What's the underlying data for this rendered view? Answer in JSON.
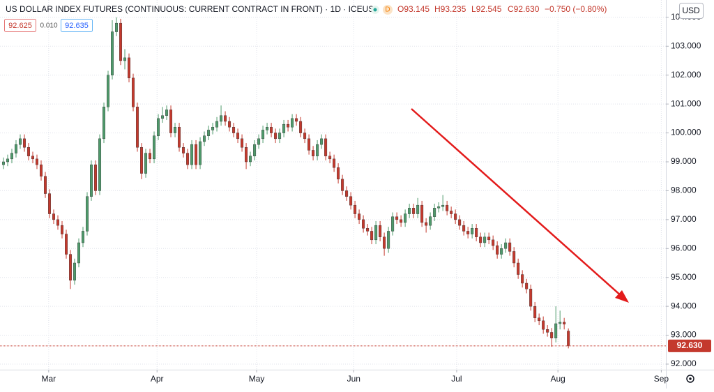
{
  "chart_data": {
    "type": "candlestick",
    "title": "US DOLLAR INDEX FUTURES (CONTINUOUS: CURRENT CONTRACT IN FRONT) · 1D · ICEUS",
    "interval_badge": "D",
    "ohlc_header": {
      "open": "O93.145",
      "high": "H93.235",
      "low": "L92.545",
      "close": "C92.630",
      "change": "−0.750 (−0.80%)"
    },
    "bid": "92.625",
    "spread": "0.010",
    "ask": "92.635",
    "currency": "USD",
    "last_price": 92.63,
    "last_price_label": "92.630",
    "up_color": "#4e9a6b",
    "down_color": "#c4392d",
    "grid": true,
    "xlim": [
      -0.83,
      158.3
    ],
    "xticks": [
      {
        "value": 10.8,
        "label": "Mar"
      },
      {
        "value": 36.7,
        "label": "Apr"
      },
      {
        "value": 60.5,
        "label": "May"
      },
      {
        "value": 83.7,
        "label": "Jun"
      },
      {
        "value": 108.3,
        "label": "Jul"
      },
      {
        "value": 132.5,
        "label": "Aug"
      },
      {
        "value": 157.2,
        "label": "Sep"
      }
    ],
    "ylim": [
      91.807,
      104.6
    ],
    "yticks": [
      {
        "value": 92,
        "label": "92.000"
      },
      {
        "value": 93,
        "label": "93.000"
      },
      {
        "value": 94,
        "label": "94.000"
      },
      {
        "value": 95,
        "label": "95.000"
      },
      {
        "value": 96,
        "label": "96.000"
      },
      {
        "value": 97,
        "label": "97.000"
      },
      {
        "value": 98,
        "label": "98.000"
      },
      {
        "value": 99,
        "label": "99.000"
      },
      {
        "value": 100,
        "label": "100.000"
      },
      {
        "value": 101,
        "label": "101.000"
      },
      {
        "value": 102,
        "label": "102.000"
      },
      {
        "value": 103,
        "label": "103.000"
      },
      {
        "value": 104,
        "label": "104.000"
      }
    ],
    "ohlc": [
      [
        98.9,
        99.15,
        98.75,
        99.0
      ],
      [
        99.0,
        99.25,
        98.85,
        99.1
      ],
      [
        99.1,
        99.45,
        98.95,
        99.3
      ],
      [
        99.3,
        99.75,
        99.15,
        99.6
      ],
      [
        99.6,
        99.95,
        99.45,
        99.8
      ],
      [
        99.8,
        99.95,
        99.35,
        99.5
      ],
      [
        99.5,
        99.65,
        99.05,
        99.2
      ],
      [
        99.2,
        99.35,
        98.95,
        99.1
      ],
      [
        99.1,
        99.25,
        98.75,
        98.9
      ],
      [
        98.9,
        99.05,
        98.35,
        98.5
      ],
      [
        98.5,
        98.65,
        97.75,
        97.9
      ],
      [
        97.9,
        98.05,
        97.05,
        97.2
      ],
      [
        97.2,
        97.35,
        96.85,
        97.0
      ],
      [
        97.0,
        97.15,
        96.65,
        96.8
      ],
      [
        96.8,
        96.95,
        96.35,
        96.5
      ],
      [
        96.5,
        96.65,
        95.65,
        95.8
      ],
      [
        95.8,
        95.95,
        94.6,
        94.9
      ],
      [
        94.9,
        95.65,
        94.75,
        95.5
      ],
      [
        95.5,
        96.35,
        95.35,
        96.2
      ],
      [
        96.2,
        96.75,
        96.05,
        96.6
      ],
      [
        96.6,
        97.95,
        96.45,
        97.8
      ],
      [
        97.8,
        99.05,
        97.65,
        98.9
      ],
      [
        98.9,
        99.05,
        97.85,
        98.0
      ],
      [
        98.0,
        99.95,
        97.85,
        99.8
      ],
      [
        99.8,
        101.05,
        99.65,
        100.9
      ],
      [
        100.9,
        102.15,
        100.75,
        102.0
      ],
      [
        102.0,
        103.9,
        101.85,
        103.5
      ],
      [
        103.5,
        104.0,
        103.35,
        103.8
      ],
      [
        103.8,
        103.95,
        102.35,
        102.5
      ],
      [
        102.5,
        102.9,
        102.2,
        102.6
      ],
      [
        102.6,
        102.75,
        101.75,
        101.9
      ],
      [
        101.9,
        102.05,
        100.75,
        100.9
      ],
      [
        100.9,
        101.05,
        99.35,
        99.5
      ],
      [
        99.5,
        99.65,
        98.4,
        98.6
      ],
      [
        98.6,
        99.45,
        98.45,
        99.3
      ],
      [
        99.3,
        99.45,
        98.95,
        99.1
      ],
      [
        99.1,
        100.05,
        98.95,
        99.9
      ],
      [
        99.9,
        100.65,
        99.75,
        100.5
      ],
      [
        100.5,
        100.9,
        100.35,
        100.6
      ],
      [
        100.6,
        100.95,
        100.45,
        100.8
      ],
      [
        100.8,
        100.95,
        99.85,
        100.0
      ],
      [
        100.0,
        100.35,
        99.85,
        100.2
      ],
      [
        100.2,
        100.35,
        99.35,
        99.5
      ],
      [
        99.5,
        99.65,
        99.15,
        99.3
      ],
      [
        99.3,
        99.45,
        98.75,
        98.9
      ],
      [
        98.9,
        99.75,
        98.75,
        99.6
      ],
      [
        99.6,
        99.75,
        98.75,
        98.9
      ],
      [
        98.9,
        99.85,
        98.75,
        99.7
      ],
      [
        99.7,
        100.05,
        99.55,
        99.9
      ],
      [
        99.9,
        100.25,
        99.75,
        100.1
      ],
      [
        100.1,
        100.35,
        99.95,
        100.2
      ],
      [
        100.2,
        100.55,
        100.05,
        100.4
      ],
      [
        100.4,
        100.95,
        100.25,
        100.6
      ],
      [
        100.6,
        100.75,
        100.25,
        100.4
      ],
      [
        100.4,
        100.55,
        100.05,
        100.2
      ],
      [
        100.2,
        100.35,
        99.85,
        100.0
      ],
      [
        100.0,
        100.15,
        99.65,
        99.8
      ],
      [
        99.8,
        99.95,
        99.35,
        99.5
      ],
      [
        99.5,
        99.65,
        98.75,
        99.0
      ],
      [
        99.0,
        99.35,
        98.85,
        99.2
      ],
      [
        99.2,
        99.75,
        99.05,
        99.6
      ],
      [
        99.6,
        99.95,
        99.45,
        99.8
      ],
      [
        99.8,
        100.25,
        99.65,
        100.1
      ],
      [
        100.1,
        100.35,
        99.95,
        100.2
      ],
      [
        100.2,
        100.35,
        99.85,
        100.0
      ],
      [
        100.0,
        100.15,
        99.65,
        99.8
      ],
      [
        99.8,
        100.15,
        99.65,
        100.0
      ],
      [
        100.0,
        100.45,
        99.85,
        100.3
      ],
      [
        100.3,
        100.45,
        100.05,
        100.2
      ],
      [
        100.2,
        100.65,
        100.05,
        100.5
      ],
      [
        100.5,
        100.65,
        100.25,
        100.4
      ],
      [
        100.4,
        100.55,
        99.85,
        100.0
      ],
      [
        100.0,
        100.15,
        99.65,
        99.8
      ],
      [
        99.8,
        99.95,
        99.25,
        99.4
      ],
      [
        99.4,
        99.55,
        99.05,
        99.2
      ],
      [
        99.2,
        99.75,
        99.05,
        99.6
      ],
      [
        99.6,
        99.95,
        99.45,
        99.8
      ],
      [
        99.8,
        99.95,
        99.05,
        99.2
      ],
      [
        99.2,
        99.35,
        98.95,
        99.1
      ],
      [
        99.1,
        99.25,
        98.65,
        98.8
      ],
      [
        98.8,
        98.95,
        98.25,
        98.4
      ],
      [
        98.4,
        98.55,
        97.85,
        98.0
      ],
      [
        98.0,
        98.15,
        97.65,
        97.8
      ],
      [
        97.8,
        97.95,
        97.35,
        97.5
      ],
      [
        97.5,
        97.65,
        97.05,
        97.2
      ],
      [
        97.2,
        97.35,
        96.85,
        97.0
      ],
      [
        97.0,
        97.15,
        96.55,
        96.7
      ],
      [
        96.7,
        96.85,
        96.45,
        96.6
      ],
      [
        96.6,
        96.75,
        96.15,
        96.3
      ],
      [
        96.3,
        96.95,
        96.15,
        96.8
      ],
      [
        96.8,
        96.95,
        96.25,
        96.4
      ],
      [
        96.4,
        96.55,
        95.75,
        96.0
      ],
      [
        96.0,
        96.75,
        95.85,
        96.6
      ],
      [
        96.6,
        97.25,
        96.45,
        97.1
      ],
      [
        97.1,
        97.25,
        96.85,
        97.0
      ],
      [
        97.0,
        97.15,
        96.75,
        96.9
      ],
      [
        96.9,
        97.35,
        96.75,
        97.2
      ],
      [
        97.2,
        97.55,
        97.05,
        97.4
      ],
      [
        97.4,
        97.55,
        97.05,
        97.2
      ],
      [
        97.2,
        97.75,
        97.05,
        97.5
      ],
      [
        97.5,
        97.65,
        96.75,
        96.9
      ],
      [
        96.9,
        97.05,
        96.55,
        96.8
      ],
      [
        96.8,
        97.25,
        96.65,
        97.1
      ],
      [
        97.1,
        97.55,
        96.95,
        97.4
      ],
      [
        97.4,
        97.6,
        97.25,
        97.45
      ],
      [
        97.45,
        97.85,
        97.3,
        97.5
      ],
      [
        97.5,
        97.65,
        97.15,
        97.3
      ],
      [
        97.3,
        97.45,
        97.05,
        97.2
      ],
      [
        97.2,
        97.35,
        96.85,
        97.0
      ],
      [
        97.0,
        97.15,
        96.65,
        96.8
      ],
      [
        96.8,
        96.95,
        96.45,
        96.6
      ],
      [
        96.6,
        96.75,
        96.35,
        96.5
      ],
      [
        96.5,
        96.85,
        96.35,
        96.7
      ],
      [
        96.7,
        96.85,
        96.25,
        96.4
      ],
      [
        96.4,
        96.55,
        96.05,
        96.2
      ],
      [
        96.2,
        96.55,
        96.05,
        96.4
      ],
      [
        96.4,
        96.55,
        96.15,
        96.3
      ],
      [
        96.3,
        96.45,
        95.95,
        96.1
      ],
      [
        96.1,
        96.25,
        95.65,
        95.8
      ],
      [
        95.8,
        96.15,
        95.65,
        96.0
      ],
      [
        96.0,
        96.35,
        95.85,
        96.2
      ],
      [
        96.2,
        96.35,
        95.75,
        95.9
      ],
      [
        95.9,
        96.05,
        95.35,
        95.5
      ],
      [
        95.5,
        95.65,
        94.95,
        95.1
      ],
      [
        95.1,
        95.25,
        94.65,
        94.8
      ],
      [
        94.8,
        94.95,
        94.45,
        94.6
      ],
      [
        94.6,
        94.75,
        93.85,
        94.0
      ],
      [
        94.0,
        94.15,
        93.45,
        93.6
      ],
      [
        93.6,
        93.75,
        93.35,
        93.5
      ],
      [
        93.5,
        93.65,
        93.05,
        93.2
      ],
      [
        93.2,
        93.35,
        92.95,
        93.1
      ],
      [
        93.1,
        93.25,
        92.6,
        92.9
      ],
      [
        92.9,
        94.0,
        92.75,
        93.4
      ],
      [
        93.4,
        93.85,
        93.2,
        93.45
      ],
      [
        93.45,
        93.6,
        93.2,
        93.38
      ],
      [
        93.145,
        93.235,
        92.545,
        92.63
      ]
    ]
  }
}
